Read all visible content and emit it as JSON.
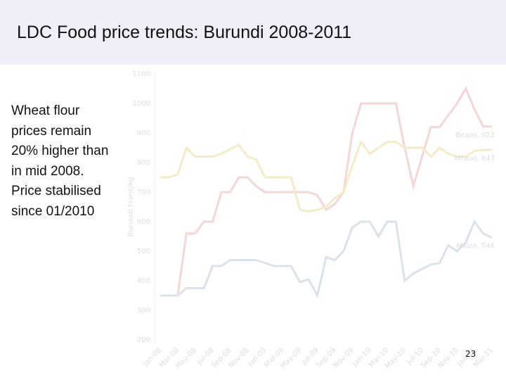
{
  "slide": {
    "title": "LDC Food price trends: Burundi 2008-2011",
    "body": "Wheat flour prices remain 20% higher than in mid 2008. Price stabilised since 01/2010",
    "page_number": "23"
  },
  "chart_data": {
    "type": "line",
    "y_label": "Burundi Franc/kg",
    "categories": [
      "Jan-08",
      null,
      "Mar-08",
      null,
      "May-08",
      null,
      "Jul-08",
      null,
      "Sep-08",
      null,
      "Nov-08",
      null,
      "Jan-09",
      null,
      "Mar-09",
      null,
      "May-09",
      null,
      "Jul-09",
      null,
      "Sep-09",
      null,
      "Nov-09",
      null,
      "Jan-10",
      null,
      "Mar-10",
      null,
      "May-10",
      null,
      "Jul-10",
      null,
      "Sep-10",
      null,
      "Nov-10",
      null,
      "Jan-11",
      null,
      "Mar-11"
    ],
    "series": [
      {
        "name": "Beans",
        "end_label": "Beans, 922",
        "color": "#f5d6d6",
        "values": [
          350,
          350,
          350,
          560,
          560,
          600,
          600,
          700,
          700,
          750,
          750,
          720,
          700,
          700,
          700,
          700,
          700,
          700,
          690,
          640,
          660,
          700,
          900,
          1000,
          1000,
          1000,
          1000,
          1000,
          850,
          720,
          820,
          920,
          920,
          960,
          1000,
          1050,
          980,
          922,
          922
        ]
      },
      {
        "name": "Wheat",
        "end_label": "Wheat, 843",
        "color": "#f3ecc6",
        "values": [
          750,
          750,
          760,
          850,
          820,
          820,
          820,
          830,
          845,
          860,
          820,
          810,
          750,
          750,
          750,
          750,
          640,
          635,
          640,
          650,
          680,
          700,
          790,
          870,
          830,
          850,
          870,
          870,
          850,
          850,
          850,
          820,
          850,
          830,
          820,
          820,
          840,
          843,
          843
        ]
      },
      {
        "name": "Maize",
        "end_label": "Maize, 546",
        "color": "#dbe2ea",
        "values": [
          350,
          350,
          350,
          375,
          375,
          375,
          450,
          450,
          470,
          470,
          470,
          470,
          460,
          450,
          450,
          450,
          395,
          405,
          350,
          480,
          470,
          500,
          580,
          600,
          600,
          550,
          600,
          600,
          400,
          425,
          440,
          455,
          460,
          520,
          500,
          530,
          600,
          560,
          546
        ]
      }
    ],
    "ylim": [
      200,
      1100
    ],
    "yticks": [
      200,
      300,
      400,
      500,
      600,
      700,
      800,
      900,
      1000,
      1100
    ],
    "grid": false
  }
}
